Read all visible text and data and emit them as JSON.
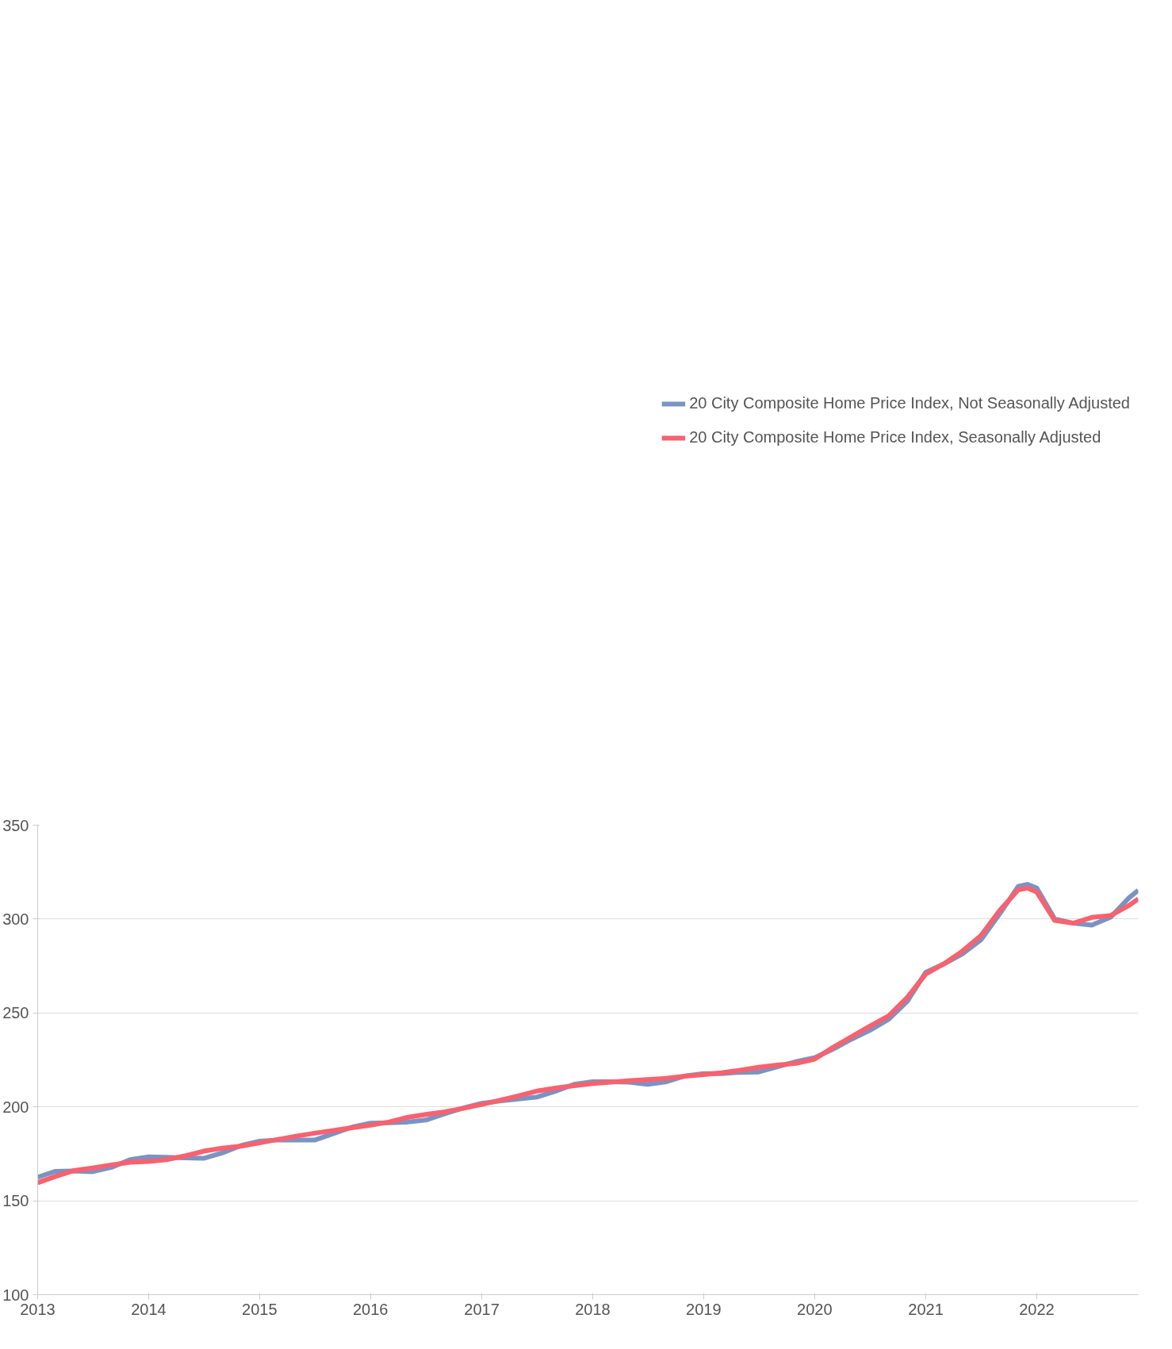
{
  "chart_data": {
    "type": "line",
    "x": [
      "2013-01",
      "2013-03",
      "2013-05",
      "2013-07",
      "2013-09",
      "2013-11",
      "2014-01",
      "2014-03",
      "2014-05",
      "2014-07",
      "2014-09",
      "2014-11",
      "2015-01",
      "2015-03",
      "2015-05",
      "2015-07",
      "2015-09",
      "2015-11",
      "2016-01",
      "2016-03",
      "2016-05",
      "2016-07",
      "2016-09",
      "2016-11",
      "2017-01",
      "2017-03",
      "2017-05",
      "2017-07",
      "2017-09",
      "2017-11",
      "2018-01",
      "2018-03",
      "2018-05",
      "2018-07",
      "2018-09",
      "2018-11",
      "2019-01",
      "2019-03",
      "2019-05",
      "2019-07",
      "2019-09",
      "2019-11",
      "2020-01",
      "2020-03",
      "2020-05",
      "2020-07",
      "2020-09",
      "2020-11",
      "2021-01",
      "2021-03",
      "2021-05",
      "2021-07",
      "2021-09",
      "2021-11",
      "2021-12",
      "2022-01",
      "2022-03",
      "2022-05",
      "2022-07",
      "2022-09",
      "2022-11",
      "2022-12"
    ],
    "series": [
      {
        "name": "20 City Composite Home Price Index, Not Seasonally Adjusted",
        "color": "#7b93c4",
        "values": [
          162.5,
          165.7,
          165.9,
          165.5,
          167.8,
          171.9,
          173.4,
          173.2,
          172.8,
          172.6,
          175.5,
          179.4,
          181.7,
          182.4,
          182.4,
          182.3,
          185.8,
          189.2,
          191.3,
          191.5,
          191.9,
          193.0,
          196.3,
          199.4,
          201.9,
          203.1,
          204.2,
          205.2,
          208.4,
          212.0,
          213.4,
          213.4,
          213.2,
          212.0,
          213.4,
          216.5,
          217.7,
          217.7,
          218.4,
          218.6,
          221.4,
          224.1,
          226.2,
          230.7,
          236.0,
          240.8,
          246.7,
          256.2,
          271.7,
          276.1,
          281.4,
          288.9,
          302.8,
          317.4,
          318.5,
          316.5,
          300.1,
          297.8,
          296.8,
          301.0,
          311.4,
          315.3
        ]
      },
      {
        "name": "20 City Composite Home Price Index, Seasonally Adjusted",
        "color": "#f8616e",
        "values": [
          159.6,
          163.0,
          166.1,
          167.5,
          169.1,
          170.5,
          170.9,
          171.9,
          173.9,
          176.4,
          178.0,
          179.1,
          180.8,
          182.6,
          184.4,
          186.0,
          187.4,
          188.9,
          190.3,
          191.9,
          194.4,
          196.0,
          197.4,
          199.2,
          201.3,
          203.5,
          205.8,
          208.4,
          210.0,
          211.3,
          212.4,
          213.2,
          213.9,
          214.5,
          215.2,
          216.3,
          217.2,
          218.1,
          219.5,
          221.1,
          222.3,
          223.2,
          225.4,
          231.6,
          237.3,
          243.0,
          248.5,
          258.3,
          270.8,
          276.1,
          282.9,
          291.2,
          304.6,
          315.6,
          316.5,
          314.4,
          299.3,
          297.8,
          300.9,
          301.9,
          307.3,
          310.8
        ]
      }
    ],
    "xlim": [
      "2013-01",
      "2022-12"
    ],
    "xticks": [
      "2013",
      "2014",
      "2015",
      "2016",
      "2017",
      "2018",
      "2019",
      "2020",
      "2021",
      "2022"
    ],
    "ylim": [
      100,
      350
    ],
    "yticks": [
      100,
      150,
      200,
      250,
      300,
      350
    ],
    "grid": "y",
    "legend": "top right",
    "line_style": "solid"
  }
}
